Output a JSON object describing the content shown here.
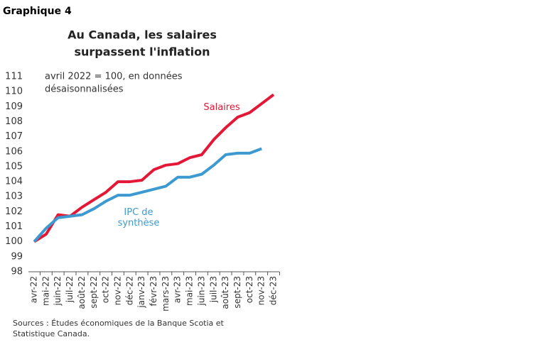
{
  "header": "Graphique 4",
  "chart_data": {
    "type": "line",
    "title": [
      "Au Canada, les salaires",
      "surpassent l'inflation"
    ],
    "subtitle": [
      "avril 2022 = 100, en données",
      "désaisonnalisées"
    ],
    "categories": [
      "avr-22",
      "mai-22",
      "juin-22",
      "juil-22",
      "août-22",
      "sept-22",
      "oct-22",
      "nov-22",
      "déc-22",
      "janv-23",
      "févr-23",
      "mars-23",
      "avr-23",
      "mai-23",
      "juin-23",
      "juil-23",
      "août-23",
      "sept-23",
      "oct-23",
      "nov-23",
      "déc-23"
    ],
    "series": [
      {
        "name": "Salaires",
        "color": "#e31837",
        "values": [
          100.0,
          100.5,
          101.8,
          101.7,
          102.3,
          102.8,
          103.3,
          104.0,
          104.0,
          104.1,
          104.8,
          105.1,
          105.2,
          105.6,
          105.8,
          106.8,
          107.6,
          108.3,
          108.6,
          109.2,
          109.8
        ]
      },
      {
        "name": "IPC de synthèse",
        "color": "#3d9ad1",
        "values": [
          100.0,
          100.9,
          101.6,
          101.7,
          101.8,
          102.2,
          102.7,
          103.1,
          103.1,
          103.3,
          103.5,
          103.7,
          104.3,
          104.3,
          104.5,
          105.1,
          105.8,
          105.9,
          105.9,
          106.2,
          null
        ]
      }
    ],
    "ylim": [
      98,
      111
    ],
    "yticks": [
      98,
      99,
      100,
      101,
      102,
      103,
      104,
      105,
      106,
      107,
      108,
      109,
      110,
      111
    ],
    "grid": false
  },
  "source": [
    "Sources : Études économiques de la Banque Scotia et",
    "Statistique Canada."
  ]
}
